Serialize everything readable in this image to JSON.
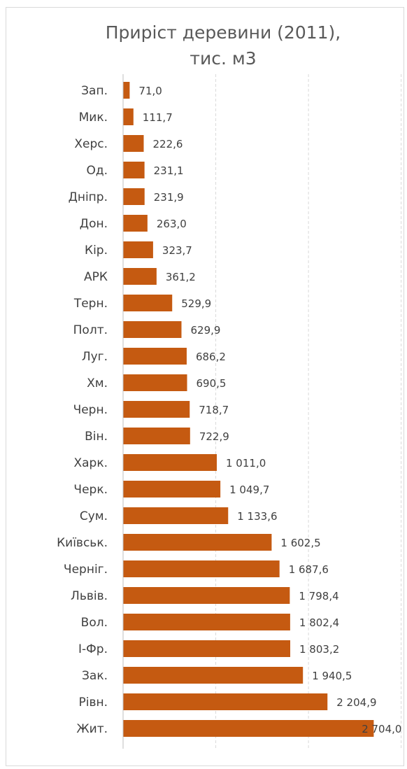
{
  "chart_data": {
    "type": "bar",
    "orientation": "horizontal",
    "title_lines": [
      "Приріст деревини (2011),",
      "тис. м3"
    ],
    "categories": [
      "Зап.",
      "Мик.",
      "Херс.",
      "Од.",
      "Дніпр.",
      "Дон.",
      "Кір.",
      "АРК",
      "Терн.",
      "Полт.",
      "Луг.",
      "Хм.",
      "Черн.",
      "Він.",
      "Харк.",
      "Черк.",
      "Сум.",
      "Київськ.",
      "Черніг.",
      "Львів.",
      "Вол.",
      "І-Фр.",
      "Зак.",
      "Рівн.",
      "Жит."
    ],
    "values": [
      71.0,
      111.7,
      222.6,
      231.1,
      231.9,
      263.0,
      323.7,
      361.2,
      529.9,
      629.9,
      686.2,
      690.5,
      718.7,
      722.9,
      1011.0,
      1049.7,
      1133.6,
      1602.5,
      1687.6,
      1798.4,
      1802.4,
      1803.2,
      1940.5,
      2204.9,
      2704.0
    ],
    "value_labels": [
      "71,0",
      "111,7",
      "222,6",
      "231,1",
      "231,9",
      "263,0",
      "323,7",
      "361,2",
      "529,9",
      "629,9",
      "686,2",
      "690,5",
      "718,7",
      "722,9",
      "1 011,0",
      "1 049,7",
      "1 133,6",
      "1 602,5",
      "1 687,6",
      "1 798,4",
      "1 802,4",
      "1 803,2",
      "1 940,5",
      "2 204,9",
      "2 704,0"
    ],
    "xlim": [
      0,
      3000
    ],
    "gridlines": [
      1000,
      2000,
      3000
    ],
    "grid": true,
    "legend": "none",
    "bar_color": "#c55a11"
  }
}
